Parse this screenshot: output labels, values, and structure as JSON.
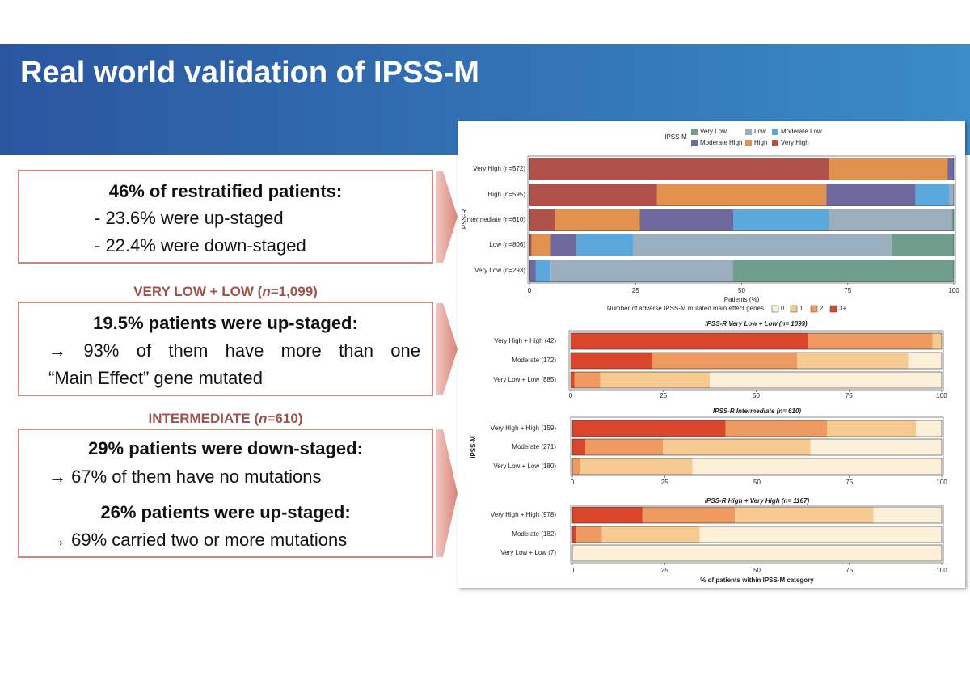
{
  "slide": {
    "title": "Real world validation of IPSS-M",
    "box1": {
      "heading": "46% of restratified patients:",
      "items": [
        "- 23.6% were up-staged",
        "- 22.4% were down-staged"
      ]
    },
    "section2": {
      "pre": "VERY LOW + LOW (",
      "n": "n",
      "post": "=1,099)"
    },
    "box2": {
      "heading": "19.5% patients were up-staged:",
      "lines": [
        "→ 93% of them have more than one",
        "“Main Effect” gene mutated"
      ]
    },
    "section3": {
      "pre": "INTERMEDIATE (",
      "n": "n",
      "post": "=610)"
    },
    "box3": {
      "heading1": "29% patients were down-staged:",
      "line1": "→ 67% of them have no mutations",
      "heading2": "26% patients were up-staged:",
      "line2": "→ 69% carried two or more mutations"
    }
  },
  "chart_data": [
    {
      "type": "bar",
      "orientation": "horizontal",
      "stacked": true,
      "xlabel": "Patients (%)",
      "ylabel": "IPSS-R",
      "legend_title": "IPSS-M",
      "categories": [
        "Very High (n=572)",
        "High (n=595)",
        "Intermediate (n=610)",
        "Low (n=806)",
        "Very Low (n=293)"
      ],
      "series": [
        {
          "name": "Very Low",
          "color": "#6f9e8c",
          "values": [
            0,
            0,
            0.5,
            14.5,
            52
          ]
        },
        {
          "name": "Low",
          "color": "#9aaebd",
          "values": [
            0,
            1,
            29,
            61,
            43
          ]
        },
        {
          "name": "Moderate Low",
          "color": "#5ba8dc",
          "values": [
            0,
            8,
            22.5,
            13.5,
            3.5
          ]
        },
        {
          "name": "Moderate High",
          "color": "#6e6a9e",
          "values": [
            1.5,
            21,
            22,
            6,
            1.5
          ]
        },
        {
          "name": "High",
          "color": "#e0924e",
          "values": [
            28,
            40,
            20,
            4.5,
            0
          ]
        },
        {
          "name": "Very High",
          "color": "#b0524a",
          "values": [
            70.5,
            30,
            6,
            0.5,
            0
          ]
        }
      ],
      "xlim": [
        0,
        100
      ],
      "xticks": [
        0,
        25,
        50,
        75,
        100
      ]
    },
    {
      "type": "bar",
      "orientation": "horizontal",
      "stacked": true,
      "title": "IPSS-R Very Low + Low (n= 1099)",
      "legend_title": "Number of adverse IPSS-M mutated main effect genes",
      "categories": [
        "Very High + High (42)",
        "Moderate (172)",
        "Very Low + Low (885)"
      ],
      "series": [
        {
          "name": "0",
          "color": "#fdf0d8",
          "values": [
            0,
            9,
            62.5
          ]
        },
        {
          "name": "1",
          "color": "#f7ca92",
          "values": [
            2.5,
            30,
            29.5
          ]
        },
        {
          "name": "2",
          "color": "#ef9a60",
          "values": [
            33.5,
            39,
            7
          ]
        },
        {
          "name": "3+",
          "color": "#d9462b",
          "values": [
            64,
            22,
            1
          ]
        }
      ],
      "xlim": [
        0,
        100
      ],
      "xticks": [
        0,
        25,
        50,
        75,
        100
      ]
    },
    {
      "type": "bar",
      "orientation": "horizontal",
      "stacked": true,
      "title": "IPSS-R Intermediate (n= 610)",
      "ylabel": "IPSS-M",
      "categories": [
        "Very High + High (159)",
        "Moderate (271)",
        "Very Low + Low (180)"
      ],
      "series": [
        {
          "color": "#fdf0d8",
          "values": [
            7,
            35.5,
            67.5
          ]
        },
        {
          "color": "#f7ca92",
          "values": [
            24,
            40,
            30.5
          ]
        },
        {
          "color": "#ef9a60",
          "values": [
            27.5,
            21,
            2
          ]
        },
        {
          "color": "#d9462b",
          "values": [
            41.5,
            3.5,
            0
          ]
        }
      ],
      "xlim": [
        0,
        100
      ],
      "xticks": [
        0,
        25,
        50,
        75,
        100
      ]
    },
    {
      "type": "bar",
      "orientation": "horizontal",
      "stacked": true,
      "title": "IPSS-R High + Very High (n= 1167)",
      "xlabel": "% of patients within IPSS-M category",
      "categories": [
        "Very High + High (978)",
        "Moderate (182)",
        "Very Low + Low (7)"
      ],
      "series": [
        {
          "color": "#fdf0d8",
          "values": [
            18.5,
            65.5,
            100
          ]
        },
        {
          "color": "#f7ca92",
          "values": [
            37.5,
            26.5,
            0
          ]
        },
        {
          "color": "#ef9a60",
          "values": [
            25,
            7,
            0
          ]
        },
        {
          "color": "#d9462b",
          "values": [
            19,
            1,
            0
          ]
        }
      ],
      "xlim": [
        0,
        100
      ],
      "xticks": [
        0,
        25,
        50,
        75,
        100
      ]
    }
  ]
}
